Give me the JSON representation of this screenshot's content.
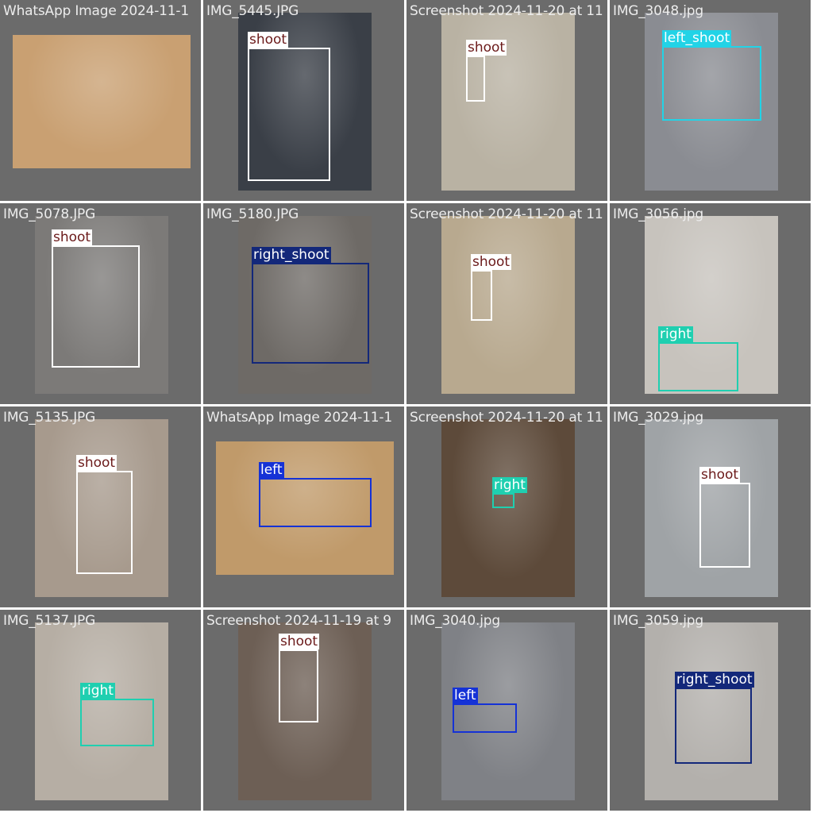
{
  "palette": {
    "tile_bg": "#6b6b6b",
    "classes": {
      "shoot": {
        "box": "#ffffff",
        "label_bg": "#ffffff",
        "label_fg": "#6b1a1a"
      },
      "left_shoot": {
        "box": "#22d3e6",
        "label_bg": "#22d3e6",
        "label_fg": "#ffffff"
      },
      "right_shoot": {
        "box": "#13287a",
        "label_bg": "#13287a",
        "label_fg": "#ffffff"
      },
      "right": {
        "box": "#1fcfb0",
        "label_bg": "#1fcfb0",
        "label_fg": "#ffffff"
      },
      "left": {
        "box": "#1532d6",
        "label_bg": "#1532d6",
        "label_fg": "#ffffff"
      }
    }
  },
  "tiles": [
    {
      "title": "WhatsApp Image 2024-11-1",
      "detections": [],
      "tone": "#c9a072"
    },
    {
      "title": "IMG_5445.JPG",
      "detections": [
        {
          "class": "shoot",
          "label": "shoot"
        }
      ],
      "tone": "#3a3f47"
    },
    {
      "title": "Screenshot 2024-11-20 at 11",
      "detections": [
        {
          "class": "shoot",
          "label": "shoot"
        }
      ],
      "tone": "#b9b2a3"
    },
    {
      "title": "IMG_3048.jpg",
      "detections": [
        {
          "class": "left_shoot",
          "label": "left_shoot"
        }
      ],
      "tone": "#8a8c92"
    },
    {
      "title": "IMG_5078.JPG",
      "detections": [
        {
          "class": "shoot",
          "label": "shoot"
        }
      ],
      "tone": "#7c7a78"
    },
    {
      "title": "IMG_5180.JPG",
      "detections": [
        {
          "class": "right_shoot",
          "label": "right_shoot"
        }
      ],
      "tone": "#6e6a66"
    },
    {
      "title": "Screenshot 2024-11-20 at 11",
      "detections": [
        {
          "class": "shoot",
          "label": "shoot"
        }
      ],
      "tone": "#b8a98f"
    },
    {
      "title": "IMG_3056.jpg",
      "detections": [
        {
          "class": "right",
          "label": "right"
        }
      ],
      "tone": "#c7c3bd"
    },
    {
      "title": "IMG_5135.JPG",
      "detections": [
        {
          "class": "shoot",
          "label": "shoot"
        }
      ],
      "tone": "#a79a8d"
    },
    {
      "title": "WhatsApp Image 2024-11-1",
      "detections": [
        {
          "class": "left",
          "label": "left"
        }
      ],
      "tone": "#c09a6a"
    },
    {
      "title": "Screenshot 2024-11-20 at 11",
      "detections": [
        {
          "class": "right",
          "label": "right"
        }
      ],
      "tone": "#5d4a3a"
    },
    {
      "title": "IMG_3029.jpg",
      "detections": [
        {
          "class": "shoot",
          "label": "shoot"
        }
      ],
      "tone": "#9fa3a6"
    },
    {
      "title": "IMG_5137.JPG",
      "detections": [
        {
          "class": "right",
          "label": "right"
        }
      ],
      "tone": "#b6aea4"
    },
    {
      "title": "Screenshot 2024-11-19 at 9",
      "detections": [
        {
          "class": "shoot",
          "label": "shoot"
        }
      ],
      "tone": "#6d5f55"
    },
    {
      "title": "IMG_3040.jpg",
      "detections": [
        {
          "class": "left",
          "label": "left"
        }
      ],
      "tone": "#7f8186"
    },
    {
      "title": "IMG_3059.jpg",
      "detections": [
        {
          "class": "right_shoot",
          "label": "right_shoot"
        }
      ],
      "tone": "#b3b0ac"
    }
  ]
}
